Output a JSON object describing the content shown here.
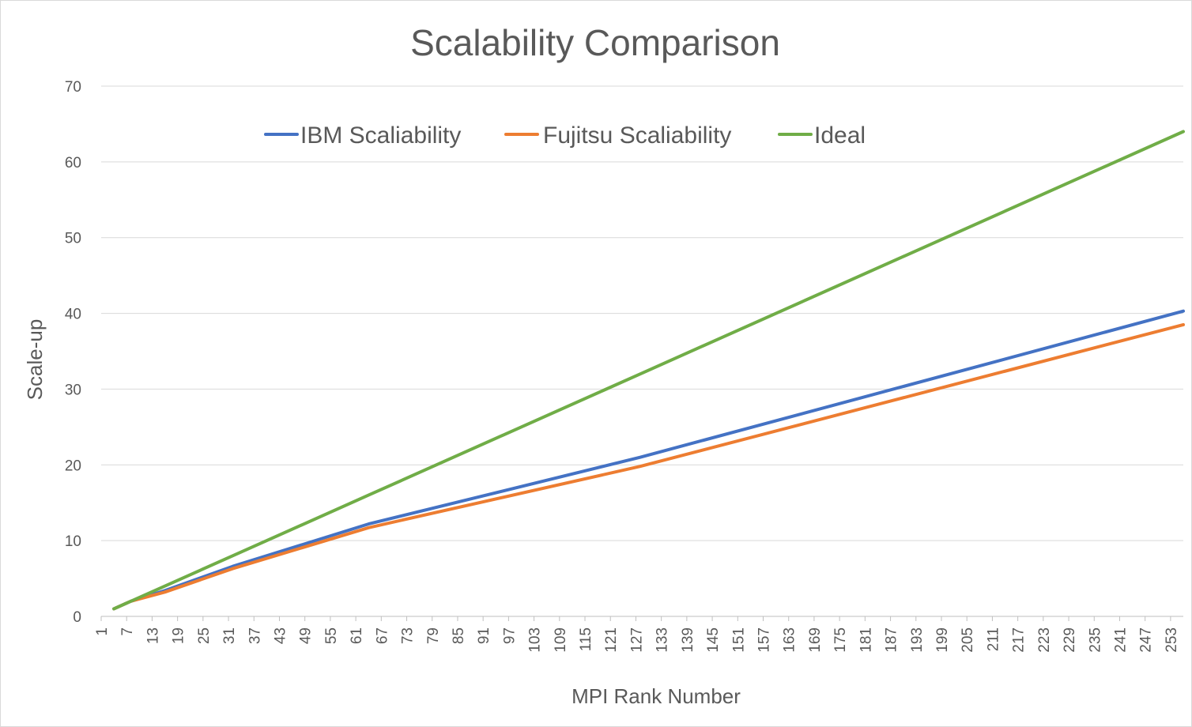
{
  "chart_data": {
    "type": "line",
    "title": "Scalability Comparison",
    "xlabel": "MPI Rank Number",
    "ylabel": "Scale-up",
    "ylim": [
      0,
      70
    ],
    "yticks": [
      0,
      10,
      20,
      30,
      40,
      50,
      60,
      70
    ],
    "xlim": [
      1,
      256
    ],
    "xticks": [
      1,
      7,
      13,
      19,
      25,
      31,
      37,
      43,
      49,
      55,
      61,
      67,
      73,
      79,
      85,
      91,
      97,
      103,
      109,
      115,
      121,
      127,
      133,
      139,
      145,
      151,
      157,
      163,
      169,
      175,
      181,
      187,
      193,
      199,
      205,
      211,
      217,
      223,
      229,
      235,
      241,
      247,
      253
    ],
    "grid": true,
    "legend_position": "top",
    "series": [
      {
        "name": "IBM Scaliability",
        "color": "#4472C4",
        "points": [
          [
            4,
            1
          ],
          [
            8,
            2
          ],
          [
            16,
            3.4
          ],
          [
            32,
            6.6
          ],
          [
            64,
            12.2
          ],
          [
            128,
            21
          ],
          [
            256,
            40.3
          ]
        ]
      },
      {
        "name": "Fujitsu Scaliability",
        "color": "#ED7D31",
        "points": [
          [
            4,
            1
          ],
          [
            8,
            2
          ],
          [
            16,
            3.2
          ],
          [
            32,
            6.3
          ],
          [
            64,
            11.7
          ],
          [
            128,
            19.8
          ],
          [
            256,
            38.5
          ]
        ]
      },
      {
        "name": "Ideal",
        "color": "#70AD47",
        "points": [
          [
            4,
            1
          ],
          [
            8,
            2
          ],
          [
            16,
            4
          ],
          [
            32,
            8
          ],
          [
            64,
            16
          ],
          [
            128,
            32
          ],
          [
            256,
            64
          ]
        ]
      }
    ]
  }
}
